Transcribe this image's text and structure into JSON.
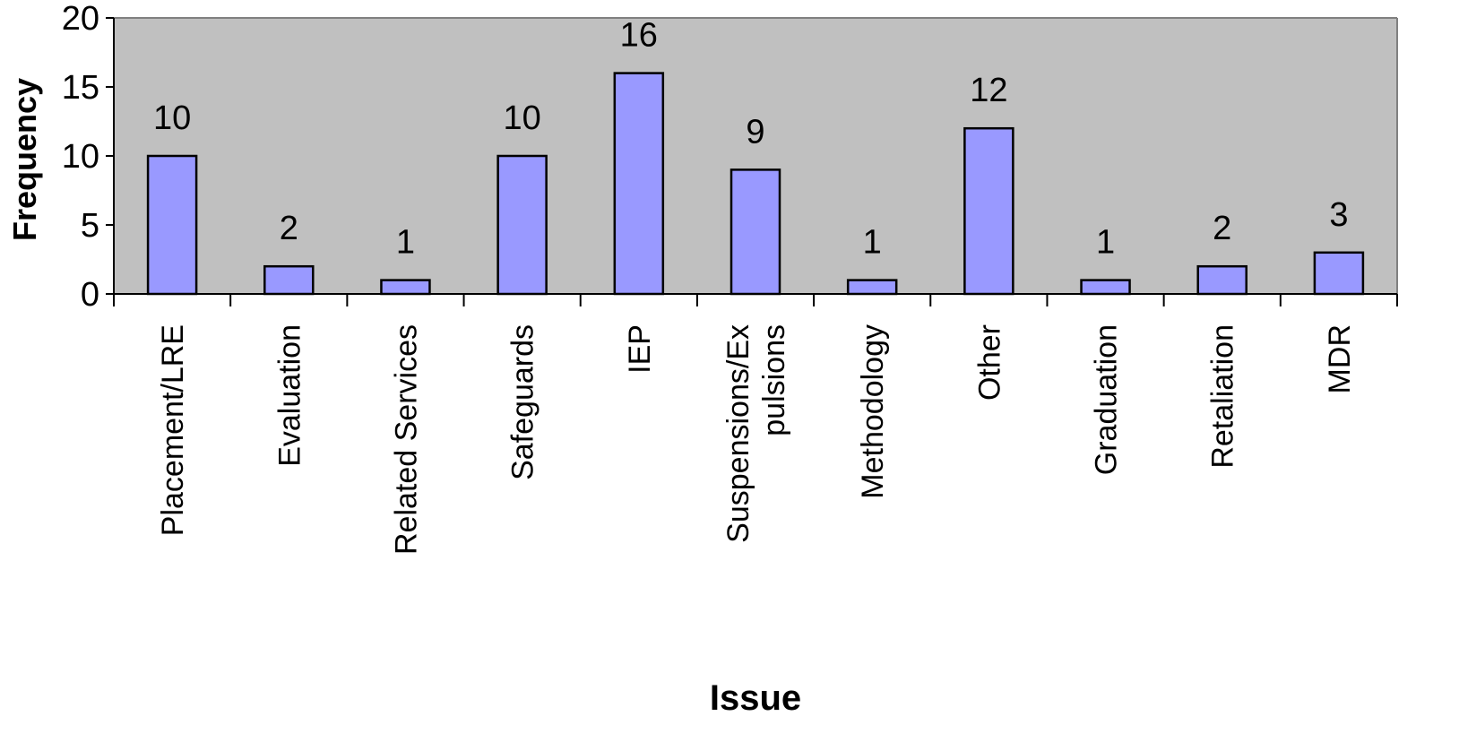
{
  "chart_data": {
    "type": "bar",
    "title": "",
    "xlabel": "Issue",
    "ylabel": "Frequency",
    "ylim": [
      0,
      20
    ],
    "yticks": [
      0,
      5,
      10,
      15,
      20
    ],
    "grid": false,
    "legend": "none",
    "categories": [
      [
        "Placement/LRE"
      ],
      [
        "Evaluation"
      ],
      [
        "Related Services"
      ],
      [
        "Safeguards"
      ],
      [
        "IEP"
      ],
      [
        "Suspensions/Ex",
        "pulsions"
      ],
      [
        "Methodology"
      ],
      [
        "Other"
      ],
      [
        "Graduation"
      ],
      [
        "Retaliation"
      ],
      [
        "MDR"
      ]
    ],
    "values": [
      10,
      2,
      1,
      10,
      16,
      9,
      1,
      12,
      1,
      2,
      3
    ],
    "colors": {
      "plot_background": "#c0c0c0",
      "bar_fill": "#9999ff",
      "bar_stroke": "#000000"
    }
  }
}
